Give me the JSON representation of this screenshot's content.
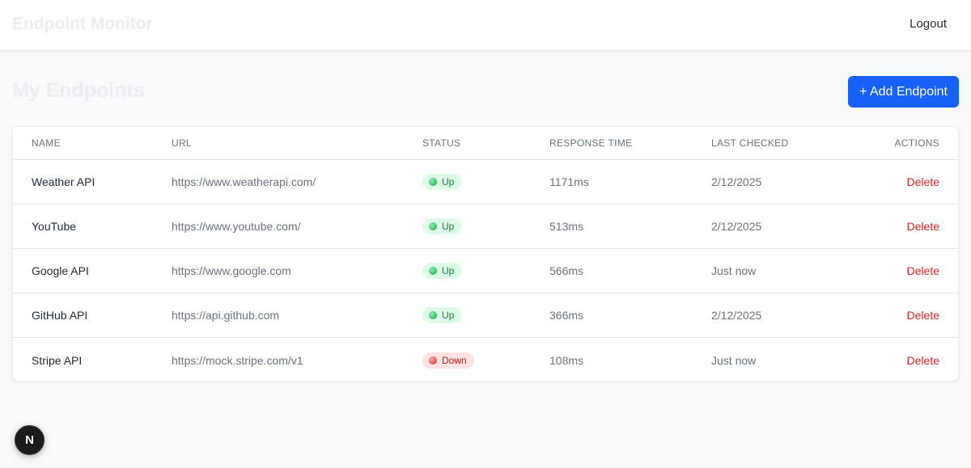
{
  "header": {
    "brand": "Endpoint Monitor",
    "logout_label": "Logout"
  },
  "main": {
    "title": "My Endpoints",
    "add_button_label": "+ Add Endpoint"
  },
  "table": {
    "columns": [
      "NAME",
      "URL",
      "STATUS",
      "RESPONSE TIME",
      "LAST CHECKED",
      "ACTIONS"
    ],
    "rows": [
      {
        "name": "Weather API",
        "url": "https://www.weatherapi.com/",
        "status": "Up",
        "response_time": "1171ms",
        "last_checked": "2/12/2025",
        "action": "Delete"
      },
      {
        "name": "YouTube",
        "url": "https://www.youtube.com/",
        "status": "Up",
        "response_time": "513ms",
        "last_checked": "2/12/2025",
        "action": "Delete"
      },
      {
        "name": "Google API",
        "url": "https://www.google.com",
        "status": "Up",
        "response_time": "566ms",
        "last_checked": "Just now",
        "action": "Delete"
      },
      {
        "name": "GitHub API",
        "url": "https://api.github.com",
        "status": "Up",
        "response_time": "366ms",
        "last_checked": "2/12/2025",
        "action": "Delete"
      },
      {
        "name": "Stripe API",
        "url": "https://mock.stripe.com/v1",
        "status": "Down",
        "response_time": "108ms",
        "last_checked": "Just now",
        "action": "Delete"
      }
    ]
  },
  "dev_indicator": {
    "letter": "N",
    "icon": "nextjs-icon"
  },
  "colors": {
    "accent": "#1662f8",
    "status_up": "#15803d",
    "status_down": "#b91c1c",
    "delete": "#dc2626"
  }
}
